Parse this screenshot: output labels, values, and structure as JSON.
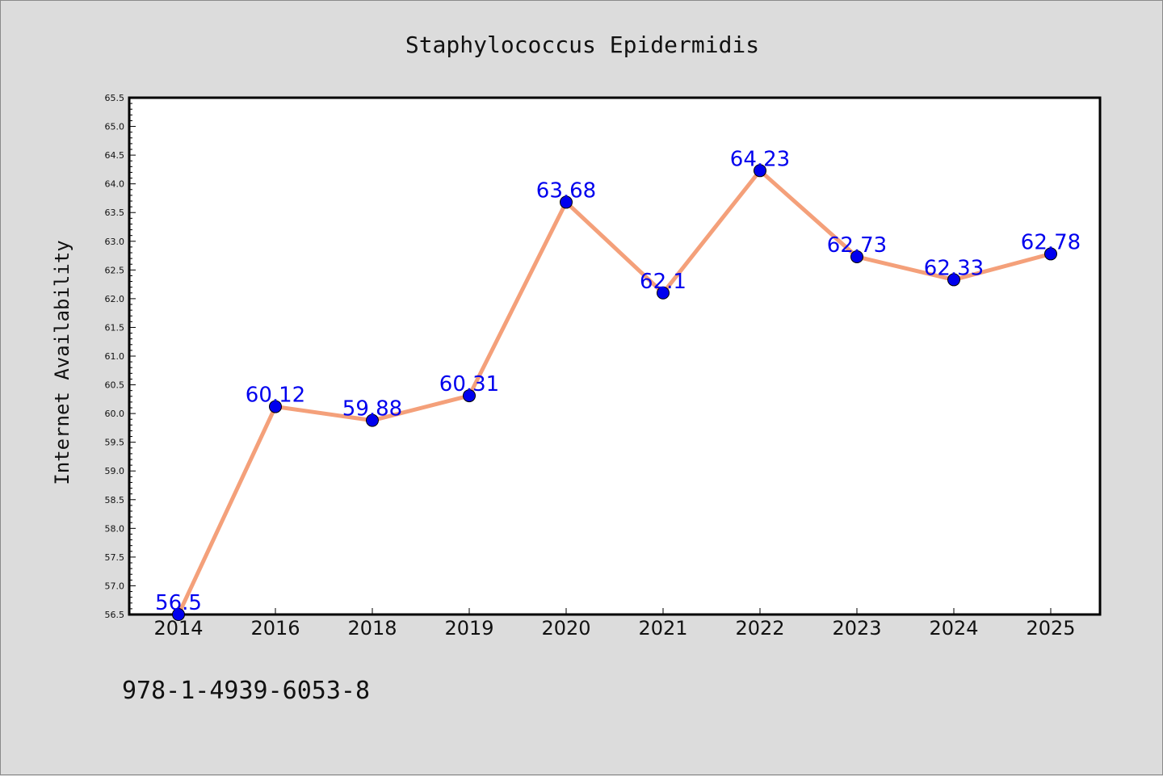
{
  "chart_data": {
    "type": "line",
    "title": "Staphylococcus Epidermidis",
    "xlabel": "",
    "ylabel": "Internet Availability",
    "categories": [
      "2014",
      "2016",
      "2018",
      "2019",
      "2020",
      "2021",
      "2022",
      "2023",
      "2024",
      "2025"
    ],
    "series": [
      {
        "values": [
          56.5,
          60.12,
          59.88,
          60.31,
          63.68,
          62.1,
          64.23,
          62.73,
          62.33,
          62.78
        ],
        "labels": [
          "56.5",
          "60.12",
          "59.88",
          "60.31",
          "63.68",
          "62.1",
          "64.23",
          "62.73",
          "62.33",
          "62.78"
        ],
        "line_color": "#f4a07a",
        "marker_color": "#0000ee"
      }
    ],
    "ylim": [
      56.5,
      65.5
    ],
    "yticks": [
      "56.5",
      "57.0",
      "57.5",
      "58.0",
      "58.5",
      "59.0",
      "59.5",
      "60.0",
      "60.5",
      "61.0",
      "61.5",
      "62.0",
      "62.5",
      "63.0",
      "63.5",
      "64.0",
      "64.5",
      "65.0",
      "65.5"
    ],
    "grid": false,
    "legend": "none"
  },
  "footnote": "978-1-4939-6053-8",
  "colors": {
    "background": "#dcdcdc",
    "plot_background": "#ffffff",
    "axis": "#000000"
  }
}
